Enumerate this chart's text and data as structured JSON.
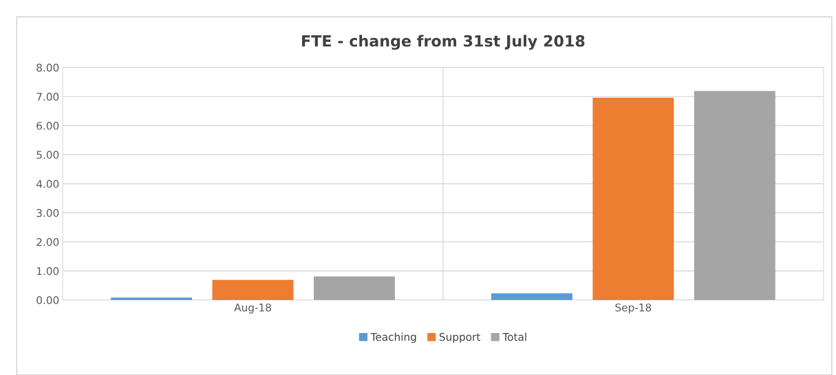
{
  "chart_data": {
    "type": "bar",
    "title": "FTE - change from 31st July 2018",
    "categories": [
      "Aug-18",
      "Sep-18"
    ],
    "series": [
      {
        "name": "Teaching",
        "color": "#5b9bd5",
        "values": [
          0.08,
          0.23
        ]
      },
      {
        "name": "Support",
        "color": "#ed7d31",
        "values": [
          0.69,
          6.96
        ]
      },
      {
        "name": "Total",
        "color": "#a5a5a5",
        "values": [
          0.81,
          7.19
        ]
      }
    ],
    "ylim": [
      0,
      8
    ],
    "yticks": [
      {
        "value": 0,
        "label": "0.00"
      },
      {
        "value": 1,
        "label": "1.00"
      },
      {
        "value": 2,
        "label": "2.00"
      },
      {
        "value": 3,
        "label": "3.00"
      },
      {
        "value": 4,
        "label": "4.00"
      },
      {
        "value": 5,
        "label": "5.00"
      },
      {
        "value": 6,
        "label": "6.00"
      },
      {
        "value": 7,
        "label": "7.00"
      },
      {
        "value": 8,
        "label": "8.00"
      }
    ],
    "grid": true,
    "legend": "bottom"
  }
}
